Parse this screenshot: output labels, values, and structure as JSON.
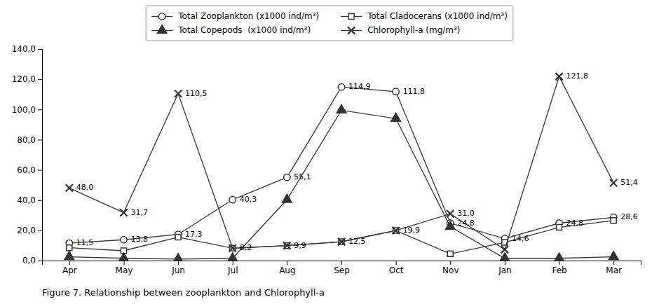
{
  "chart_data": {
    "type": "line",
    "title": "Figure 7. Relationship between zooplankton and Chlorophyll-a",
    "categories": [
      "Apr",
      "May",
      "Jun",
      "Jul",
      "Aug",
      "Sep",
      "Oct",
      "Nov",
      "Jan",
      "Feb",
      "Mar"
    ],
    "series": [
      {
        "name": "Total Zooplankton (x1000 ind/m³)",
        "color": "#333333",
        "marker": "circle",
        "values": [
          11.5,
          13.8,
          17.3,
          40.3,
          55.1,
          114.9,
          111.8,
          24.8,
          14.6,
          24.8,
          28.6
        ],
        "value_labels": [
          "11,5",
          "13,8",
          "17,3",
          "40,3",
          "55,1",
          "114,9",
          "111,8",
          "24,8",
          "14,6",
          "24,8",
          "28,6"
        ]
      },
      {
        "name": "Total Cladocerans (x1000 ind/m³)",
        "color": "#333333",
        "marker": "square",
        "values": [
          8.5,
          6.5,
          15.5,
          8.2,
          9.9,
          12.5,
          19.9,
          4.5,
          12.0,
          22.0,
          26.5
        ],
        "value_labels": [
          null,
          null,
          null,
          "8,2",
          null,
          "12,5",
          "19,9",
          null,
          null,
          null,
          null
        ]
      },
      {
        "name": "Total Copepods  (x1000 ind/m³)",
        "color": "#333333",
        "marker": "triangle",
        "values": [
          2.5,
          1.5,
          1.0,
          1.5,
          40.3,
          99.5,
          94.0,
          22.5,
          1.5,
          1.5,
          2.5
        ]
      },
      {
        "name": "Chlorophyll-a (mg/m³)",
        "color": "#333333",
        "marker": "x",
        "values": [
          48.0,
          31.7,
          110.5,
          8.2,
          9.9,
          12.5,
          19.9,
          31.0,
          7.3,
          121.8,
          51.4
        ],
        "value_labels": [
          "48,0",
          "31,7",
          "110,5",
          null,
          "9,9",
          null,
          null,
          "31,0",
          null,
          "121,8",
          "51,4"
        ]
      }
    ],
    "ylim": [
      0,
      140
    ],
    "yticks": [
      {
        "value": 0,
        "label": "0,0"
      },
      {
        "value": 20,
        "label": "20,0"
      },
      {
        "value": 40,
        "label": "40,0"
      },
      {
        "value": 60,
        "label": "60,0"
      },
      {
        "value": 80,
        "label": "80,0"
      },
      {
        "value": 100,
        "label": "100,0"
      },
      {
        "value": 120,
        "label": "120,0"
      },
      {
        "value": 140,
        "label": "140,0"
      }
    ],
    "grid": false,
    "legend": "top",
    "data_labels": true
  }
}
